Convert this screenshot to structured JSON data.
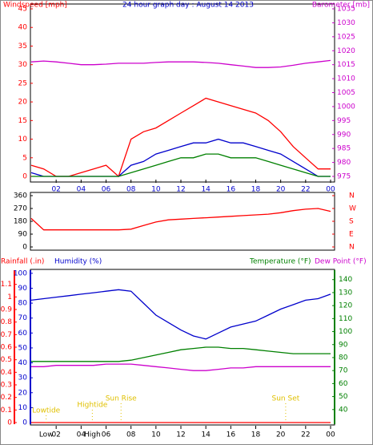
{
  "chart_data": [
    {
      "type": "line",
      "title": "24 hour graph day : August 14 2013",
      "x": [
        0,
        1,
        2,
        3,
        4,
        5,
        6,
        7,
        8,
        9,
        10,
        11,
        12,
        13,
        14,
        15,
        16,
        17,
        18,
        19,
        20,
        21,
        22,
        23,
        24
      ],
      "xlim": [
        0,
        24
      ],
      "xticks": [
        {
          "value": 2,
          "label": "02"
        },
        {
          "value": 4,
          "label": "04"
        },
        {
          "value": 6,
          "label": "06"
        },
        {
          "value": 8,
          "label": "08"
        },
        10,
        12,
        14,
        16,
        18,
        20,
        22,
        {
          "value": 24,
          "label": "00"
        }
      ],
      "axes": [
        {
          "label": "Windspeed [mph]",
          "color": "#ff0000",
          "lim": [
            0,
            45
          ],
          "ticks": [
            0,
            5,
            10,
            15,
            20,
            25,
            30,
            35,
            40,
            45
          ]
        },
        {
          "label": "Barometer [mb]",
          "color": "#cc00cc",
          "lim": [
            975,
            1035
          ],
          "ticks": [
            975,
            980,
            985,
            990,
            995,
            1000,
            1005,
            1010,
            1015,
            1020,
            1025,
            1030,
            1035
          ]
        }
      ],
      "series": [
        {
          "color": "#ff0000",
          "axis": 0,
          "values": [
            3,
            2,
            0,
            0,
            1,
            2,
            3,
            0,
            10,
            12,
            13,
            15,
            17,
            19,
            21,
            20,
            19,
            18,
            17,
            15,
            12,
            8,
            5,
            2,
            2
          ]
        },
        {
          "color": "#0000cc",
          "axis": 0,
          "values": [
            1,
            0,
            0,
            0,
            0,
            0,
            0,
            0,
            3,
            4,
            6,
            7,
            8,
            9,
            9,
            10,
            9,
            9,
            8,
            7,
            6,
            4,
            2,
            0,
            0
          ]
        },
        {
          "color": "#008000",
          "axis": 0,
          "values": [
            0,
            0,
            0,
            0,
            0,
            0,
            0,
            0,
            1,
            2,
            3,
            4,
            5,
            5,
            6,
            6,
            5,
            5,
            5,
            4,
            3,
            2,
            1,
            0,
            0
          ]
        },
        {
          "color": "#cc00cc",
          "axis": 1,
          "values": [
            1016,
            1016.3,
            1016,
            1015.5,
            1015,
            1015,
            1015.2,
            1015.5,
            1015.5,
            1015.5,
            1015.8,
            1016,
            1016,
            1016,
            1015.8,
            1015.5,
            1015,
            1014.5,
            1014,
            1014,
            1014.2,
            1014.8,
            1015.5,
            1016,
            1016.5
          ]
        }
      ]
    },
    {
      "type": "line",
      "x": [
        0,
        1,
        2,
        3,
        4,
        5,
        6,
        7,
        8,
        9,
        10,
        11,
        12,
        13,
        14,
        15,
        16,
        17,
        18,
        19,
        20,
        21,
        22,
        23,
        24
      ],
      "xlim": [
        0,
        24
      ],
      "axes": [
        {
          "color": "#000000",
          "lim": [
            0,
            360
          ],
          "ticks": [
            0,
            90,
            180,
            270,
            360
          ]
        },
        {
          "color": "#ff0000",
          "lim": [
            0,
            360
          ],
          "ticks": [
            {
              "value": 0,
              "label": "N"
            },
            {
              "value": 90,
              "label": "E"
            },
            {
              "value": 180,
              "label": "S"
            },
            {
              "value": 270,
              "label": "W"
            },
            {
              "value": 360,
              "label": "N"
            }
          ]
        }
      ],
      "series": [
        {
          "color": "#ff0000",
          "axis": 0,
          "values": [
            200,
            120,
            120,
            120,
            120,
            120,
            120,
            120,
            125,
            150,
            175,
            190,
            195,
            200,
            205,
            210,
            215,
            220,
            225,
            230,
            240,
            255,
            265,
            270,
            250
          ]
        }
      ]
    },
    {
      "type": "line",
      "x": [
        0,
        1,
        2,
        3,
        4,
        5,
        6,
        7,
        8,
        9,
        10,
        11,
        12,
        13,
        14,
        15,
        16,
        17,
        18,
        19,
        20,
        21,
        22,
        23,
        24
      ],
      "xlim": [
        0,
        24
      ],
      "xticks": [
        {
          "value": 2,
          "label": "02"
        },
        {
          "value": 4,
          "label": "04"
        },
        {
          "value": 6,
          "label": "06"
        },
        {
          "value": 8,
          "label": "08"
        },
        10,
        12,
        14,
        16,
        18,
        20,
        22,
        {
          "value": 24,
          "label": "00"
        }
      ],
      "axes": [
        {
          "color": "#ff0000",
          "lim": [
            0,
            1.2
          ],
          "ticks": [
            0,
            0.1,
            0.2,
            0.3,
            0.4,
            0.5,
            0.6,
            0.7,
            0.8,
            0.9,
            1,
            1.1
          ]
        },
        {
          "color": "#0000cc",
          "lim": [
            0,
            101
          ],
          "ticks": [
            0,
            10,
            20,
            30,
            40,
            50,
            60,
            70,
            80,
            90,
            100
          ]
        },
        {
          "color": "#008000",
          "lim": [
            30,
            146
          ],
          "ticks": [
            40,
            50,
            60,
            70,
            80,
            90,
            100,
            110,
            120,
            130,
            140
          ]
        }
      ],
      "series": [
        {
          "name": "Rainfall (.in)",
          "color": "#ff0000",
          "axis": 0,
          "values": [
            0,
            0,
            0,
            0,
            0,
            0,
            0,
            0,
            0,
            0,
            0,
            0,
            0,
            0,
            0,
            0,
            0,
            0,
            0,
            0,
            0,
            0,
            0,
            0,
            0
          ]
        },
        {
          "name": "Humidity (%)",
          "color": "#0000cc",
          "axis": 1,
          "values": [
            82,
            83,
            84,
            85,
            86,
            87,
            88,
            89,
            88,
            80,
            72,
            67,
            62,
            58,
            56,
            60,
            64,
            66,
            68,
            72,
            76,
            79,
            82,
            83,
            86
          ]
        },
        {
          "name": "Temperature (°F)",
          "color": "#008000",
          "axis": 2,
          "values": [
            77,
            77,
            77,
            77,
            77,
            77,
            77,
            77,
            78,
            80,
            82,
            84,
            86,
            87,
            88,
            88,
            87,
            87,
            86,
            85,
            84,
            83,
            83,
            83,
            83
          ]
        },
        {
          "name": "Dew Point (°F)",
          "color": "#cc00cc",
          "axis": 2,
          "values": [
            73,
            73,
            74,
            74,
            74,
            74,
            75,
            75,
            75,
            74,
            73,
            72,
            71,
            70,
            70,
            71,
            72,
            72,
            73,
            73,
            73,
            73,
            73,
            73,
            73
          ]
        }
      ],
      "annotations": [
        {
          "text": "Lowtide",
          "x": 1.2,
          "color": "#e0c000"
        },
        {
          "text": "Hightide",
          "x": 4.9,
          "color": "#e0c000"
        },
        {
          "text": "Sun Rise",
          "x": 7.2,
          "color": "#e0c000"
        },
        {
          "text": "Sun Set",
          "x": 20.4,
          "color": "#e0c000"
        }
      ],
      "tide_marks": [
        {
          "text": "Low",
          "x": 1.2
        },
        {
          "text": "High",
          "x": 4.9
        }
      ]
    }
  ]
}
